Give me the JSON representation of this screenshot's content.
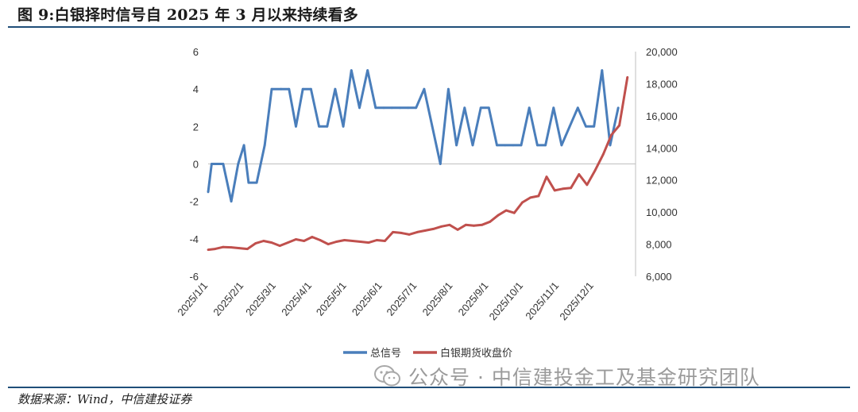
{
  "figure": {
    "title": "图 9:白银择时信号自 2025 年 3 月以来持续看多",
    "source": "数据来源：Wind，中信建投证券",
    "watermark": "公众号 · 中信建投金工及基金研究团队",
    "watermark_icon": "wechat-icon"
  },
  "chart_data": {
    "type": "line",
    "title": "",
    "xlabel": "",
    "ylabel": "",
    "y_left": {
      "range": [
        -6,
        6
      ],
      "ticks": [
        "6",
        "4",
        "2",
        "0",
        "-2",
        "-4",
        "-6"
      ]
    },
    "y_right": {
      "range": [
        6000,
        20000
      ],
      "ticks": [
        "20,000",
        "18,000",
        "16,000",
        "14,000",
        "12,000",
        "10,000",
        "8,000",
        "6,000"
      ]
    },
    "x_tick_labels": [
      "2025/1/1",
      "2025/2/1",
      "2025/3/1",
      "2025/4/1",
      "2025/5/1",
      "2025/6/1",
      "2025/7/1",
      "2025/8/1",
      "2025/9/1",
      "2025/10/1",
      "2025/11/1",
      "2025/12/1"
    ],
    "x_range": [
      "2025/1/1",
      "2026/1/6"
    ],
    "grid": false,
    "legend_position": "bottom",
    "series": [
      {
        "name": "总信号",
        "axis": "left",
        "color": "#4a7ebb",
        "points": [
          [
            "2025/1/1",
            -1.5
          ],
          [
            "2025/1/4",
            0
          ],
          [
            "2025/1/10",
            0
          ],
          [
            "2025/1/14",
            0
          ],
          [
            "2025/1/21",
            -2
          ],
          [
            "2025/1/27",
            0
          ],
          [
            "2025/2/1",
            1
          ],
          [
            "2025/2/5",
            -1
          ],
          [
            "2025/2/12",
            -1
          ],
          [
            "2025/2/19",
            1
          ],
          [
            "2025/2/25",
            4
          ],
          [
            "2025/3/5",
            4
          ],
          [
            "2025/3/12",
            4
          ],
          [
            "2025/3/18",
            2
          ],
          [
            "2025/3/24",
            4
          ],
          [
            "2025/3/31",
            4
          ],
          [
            "2025/4/7",
            2
          ],
          [
            "2025/4/14",
            2
          ],
          [
            "2025/4/21",
            4
          ],
          [
            "2025/4/28",
            2
          ],
          [
            "2025/5/5",
            5
          ],
          [
            "2025/5/12",
            3
          ],
          [
            "2025/5/19",
            5
          ],
          [
            "2025/5/26",
            3
          ],
          [
            "2025/6/2",
            3
          ],
          [
            "2025/6/9",
            3
          ],
          [
            "2025/6/16",
            3
          ],
          [
            "2025/6/23",
            3
          ],
          [
            "2025/6/30",
            3
          ],
          [
            "2025/7/7",
            4
          ],
          [
            "2025/7/14",
            2
          ],
          [
            "2025/7/21",
            0
          ],
          [
            "2025/7/28",
            4
          ],
          [
            "2025/8/4",
            1
          ],
          [
            "2025/8/11",
            3
          ],
          [
            "2025/8/18",
            1
          ],
          [
            "2025/8/25",
            3
          ],
          [
            "2025/9/1",
            3
          ],
          [
            "2025/9/8",
            1
          ],
          [
            "2025/9/15",
            1
          ],
          [
            "2025/9/22",
            1
          ],
          [
            "2025/9/29",
            1
          ],
          [
            "2025/10/6",
            3
          ],
          [
            "2025/10/13",
            1
          ],
          [
            "2025/10/20",
            1
          ],
          [
            "2025/10/27",
            3
          ],
          [
            "2025/11/3",
            1
          ],
          [
            "2025/11/10",
            2
          ],
          [
            "2025/11/17",
            3
          ],
          [
            "2025/11/24",
            2
          ],
          [
            "2025/12/1",
            2
          ],
          [
            "2025/12/8",
            5
          ],
          [
            "2025/12/15",
            1
          ],
          [
            "2025/12/22",
            3
          ]
        ]
      },
      {
        "name": "白银期货收盘价",
        "axis": "right",
        "color": "#c0504d",
        "points": [
          [
            "2025/1/1",
            7650
          ],
          [
            "2025/1/7",
            7700
          ],
          [
            "2025/1/14",
            7820
          ],
          [
            "2025/1/21",
            7800
          ],
          [
            "2025/1/28",
            7750
          ],
          [
            "2025/2/4",
            7700
          ],
          [
            "2025/2/11",
            8050
          ],
          [
            "2025/2/18",
            8200
          ],
          [
            "2025/2/25",
            8100
          ],
          [
            "2025/3/4",
            7900
          ],
          [
            "2025/3/11",
            8100
          ],
          [
            "2025/3/18",
            8300
          ],
          [
            "2025/3/25",
            8200
          ],
          [
            "2025/4/1",
            8450
          ],
          [
            "2025/4/8",
            8250
          ],
          [
            "2025/4/15",
            8000
          ],
          [
            "2025/4/22",
            8150
          ],
          [
            "2025/4/29",
            8250
          ],
          [
            "2025/5/6",
            8200
          ],
          [
            "2025/5/13",
            8150
          ],
          [
            "2025/5/20",
            8100
          ],
          [
            "2025/5/27",
            8250
          ],
          [
            "2025/6/3",
            8200
          ],
          [
            "2025/6/10",
            8750
          ],
          [
            "2025/6/17",
            8700
          ],
          [
            "2025/6/24",
            8600
          ],
          [
            "2025/7/1",
            8750
          ],
          [
            "2025/7/8",
            8850
          ],
          [
            "2025/7/15",
            8950
          ],
          [
            "2025/7/22",
            9100
          ],
          [
            "2025/7/29",
            9200
          ],
          [
            "2025/8/5",
            8900
          ],
          [
            "2025/8/12",
            9200
          ],
          [
            "2025/8/19",
            9150
          ],
          [
            "2025/8/26",
            9200
          ],
          [
            "2025/9/2",
            9400
          ],
          [
            "2025/9/9",
            9800
          ],
          [
            "2025/9/16",
            10100
          ],
          [
            "2025/9/23",
            9950
          ],
          [
            "2025/9/30",
            10600
          ],
          [
            "2025/10/7",
            10900
          ],
          [
            "2025/10/14",
            11000
          ],
          [
            "2025/10/21",
            12200
          ],
          [
            "2025/10/28",
            11350
          ],
          [
            "2025/11/4",
            11450
          ],
          [
            "2025/11/11",
            11500
          ],
          [
            "2025/11/18",
            12350
          ],
          [
            "2025/11/25",
            11700
          ],
          [
            "2025/12/2",
            12600
          ],
          [
            "2025/12/9",
            13600
          ],
          [
            "2025/12/16",
            14800
          ],
          [
            "2025/12/23",
            15400
          ],
          [
            "2025/12/30",
            18400
          ]
        ]
      }
    ]
  }
}
